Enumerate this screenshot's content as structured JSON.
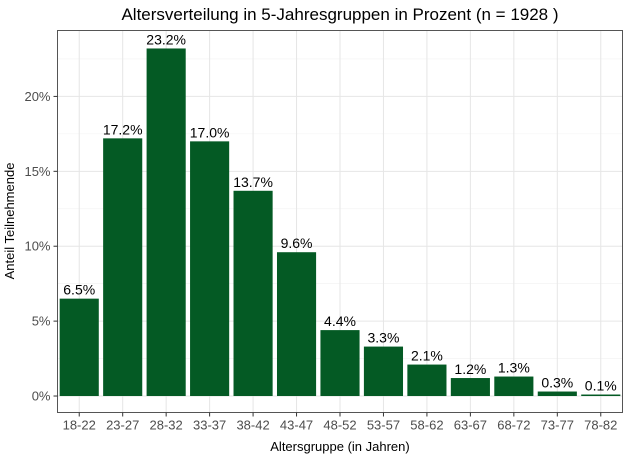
{
  "chart_data": {
    "type": "bar",
    "title": "Altersverteilung in 5-Jahresgruppen in Prozent (n = 1928 )",
    "xlabel": "Altersgruppe (in Jahren)",
    "ylabel": "Anteil Teilnehmende",
    "categories": [
      "18-22",
      "23-27",
      "28-32",
      "33-37",
      "38-42",
      "43-47",
      "48-52",
      "53-57",
      "58-62",
      "63-67",
      "68-72",
      "73-77",
      "78-82"
    ],
    "values": [
      6.5,
      17.2,
      23.2,
      17.0,
      13.7,
      9.6,
      4.4,
      3.3,
      2.1,
      1.2,
      1.3,
      0.3,
      0.1
    ],
    "data_labels": [
      "6.5%",
      "17.2%",
      "23.2%",
      "17.0%",
      "13.7%",
      "9.6%",
      "4.4%",
      "3.3%",
      "2.1%",
      "1.2%",
      "1.3%",
      "0.3%",
      "0.1%"
    ],
    "yticks": [
      0,
      5,
      10,
      15,
      20
    ],
    "ytick_labels": [
      "0%",
      "5%",
      "10%",
      "15%",
      "20%"
    ],
    "ylim": [
      -1.1,
      24.4
    ],
    "grid": true,
    "bar_color": "#045a24"
  }
}
